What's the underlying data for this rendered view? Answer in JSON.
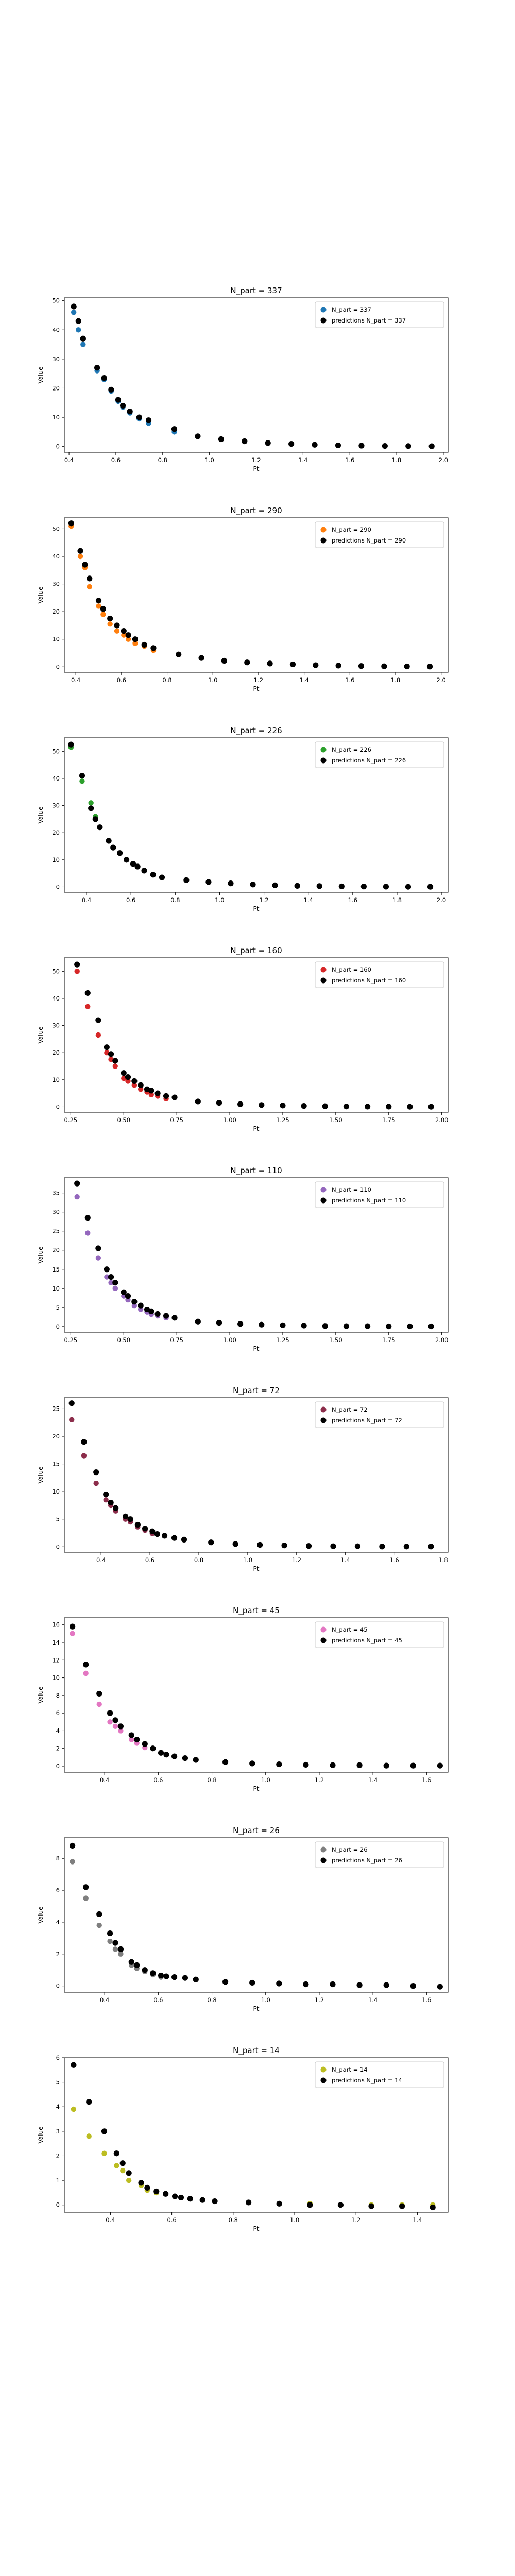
{
  "chart_data": [
    {
      "type": "scatter",
      "title": "N_part = 337",
      "xlabel": "Pt",
      "ylabel": "Value",
      "xlim": [
        0.38,
        2.02
      ],
      "ylim": [
        -2,
        51
      ],
      "xticks": [
        "0.4",
        "0.6",
        "0.8",
        "1.0",
        "1.2",
        "1.4",
        "1.6",
        "1.8",
        "2.0"
      ],
      "yticks": [
        "0",
        "10",
        "20",
        "30",
        "40",
        "50"
      ],
      "legend": "top-right",
      "series": [
        {
          "name": "N_part = 337",
          "color": "#1f77b4",
          "x": [
            0.42,
            0.44,
            0.46,
            0.52,
            0.55,
            0.58,
            0.61,
            0.63,
            0.66,
            0.7,
            0.74,
            0.85
          ],
          "y": [
            46.0,
            40.0,
            35.0,
            26.0,
            23.0,
            19.0,
            15.5,
            13.5,
            11.5,
            9.5,
            8.0,
            5.0
          ]
        },
        {
          "name": "predictions N_part = 337",
          "color": "#000000",
          "x": [
            0.42,
            0.44,
            0.46,
            0.52,
            0.55,
            0.58,
            0.61,
            0.63,
            0.66,
            0.7,
            0.74,
            0.85,
            0.95,
            1.05,
            1.15,
            1.25,
            1.35,
            1.45,
            1.55,
            1.65,
            1.75,
            1.85,
            1.95
          ],
          "y": [
            48.0,
            43.0,
            37.0,
            27.0,
            23.5,
            19.5,
            16.0,
            14.0,
            12.0,
            10.0,
            9.0,
            6.0,
            3.5,
            2.5,
            1.8,
            1.2,
            0.9,
            0.6,
            0.4,
            0.3,
            0.2,
            0.15,
            0.1
          ]
        }
      ]
    },
    {
      "type": "scatter",
      "title": "N_part = 290",
      "xlabel": "Pt",
      "ylabel": "Value",
      "xlim": [
        0.35,
        2.03
      ],
      "ylim": [
        -2,
        54
      ],
      "xticks": [
        "0.4",
        "0.6",
        "0.8",
        "1.0",
        "1.2",
        "1.4",
        "1.6",
        "1.8",
        "2.0"
      ],
      "yticks": [
        "0",
        "10",
        "20",
        "30",
        "40",
        "50"
      ],
      "legend": "top-right",
      "series": [
        {
          "name": "N_part = 290",
          "color": "#ff7f0e",
          "x": [
            0.38,
            0.42,
            0.44,
            0.46,
            0.5,
            0.52,
            0.55,
            0.58,
            0.61,
            0.63,
            0.66,
            0.7,
            0.74
          ],
          "y": [
            51.0,
            40.0,
            36.0,
            29.0,
            22.0,
            19.0,
            15.5,
            13.0,
            11.5,
            10.0,
            8.5,
            7.5,
            6.0
          ]
        },
        {
          "name": "predictions N_part = 290",
          "color": "#000000",
          "x": [
            0.38,
            0.42,
            0.44,
            0.46,
            0.5,
            0.52,
            0.55,
            0.58,
            0.61,
            0.63,
            0.66,
            0.7,
            0.74,
            0.85,
            0.95,
            1.05,
            1.15,
            1.25,
            1.35,
            1.45,
            1.55,
            1.65,
            1.75,
            1.85,
            1.95
          ],
          "y": [
            52.0,
            42.0,
            37.0,
            32.0,
            24.0,
            21.0,
            17.5,
            15.0,
            13.0,
            11.5,
            10.0,
            8.0,
            6.8,
            4.5,
            3.2,
            2.2,
            1.6,
            1.2,
            0.9,
            0.6,
            0.45,
            0.3,
            0.2,
            0.15,
            0.1
          ]
        }
      ]
    },
    {
      "type": "scatter",
      "title": "N_part = 226",
      "xlabel": "Pt",
      "ylabel": "Value",
      "xlim": [
        0.3,
        2.03
      ],
      "ylim": [
        -2,
        55
      ],
      "xticks": [
        "0.4",
        "0.6",
        "0.8",
        "1.0",
        "1.2",
        "1.4",
        "1.6",
        "1.8",
        "2.0"
      ],
      "yticks": [
        "0",
        "10",
        "20",
        "30",
        "40",
        "50"
      ],
      "legend": "top-right",
      "series": [
        {
          "name": "N_part = 226",
          "color": "#2ca02c",
          "x": [
            0.33,
            0.38,
            0.42,
            0.44,
            0.46
          ],
          "y": [
            51.5,
            39.0,
            31.0,
            26.0,
            22.0
          ]
        },
        {
          "name": "predictions N_part = 226",
          "color": "#000000",
          "x": [
            0.33,
            0.38,
            0.42,
            0.44,
            0.46,
            0.5,
            0.52,
            0.55,
            0.58,
            0.61,
            0.63,
            0.66,
            0.7,
            0.74,
            0.85,
            0.95,
            1.05,
            1.15,
            1.25,
            1.35,
            1.45,
            1.55,
            1.65,
            1.75,
            1.85,
            1.95
          ],
          "y": [
            52.5,
            41.0,
            29.0,
            25.0,
            22.0,
            17.0,
            14.5,
            12.5,
            10.0,
            8.5,
            7.5,
            6.0,
            4.5,
            3.5,
            2.5,
            1.8,
            1.3,
            0.9,
            0.6,
            0.4,
            0.3,
            0.2,
            0.15,
            0.1,
            0.05,
            0.05
          ]
        }
      ]
    },
    {
      "type": "scatter",
      "title": "N_part = 160",
      "xlabel": "Pt",
      "ylabel": "Value",
      "xlim": [
        0.22,
        2.03
      ],
      "ylim": [
        -2,
        55
      ],
      "xticks": [
        "0.25",
        "0.50",
        "0.75",
        "1.00",
        "1.25",
        "1.50",
        "1.75",
        "2.00"
      ],
      "yticks": [
        "0",
        "10",
        "20",
        "30",
        "40",
        "50"
      ],
      "legend": "top-right",
      "series": [
        {
          "name": "N_part = 160",
          "color": "#d62728",
          "x": [
            0.28,
            0.33,
            0.38,
            0.42,
            0.44,
            0.46,
            0.5,
            0.52,
            0.55,
            0.58,
            0.61,
            0.63,
            0.66,
            0.7
          ],
          "y": [
            50.0,
            37.0,
            26.5,
            20.0,
            17.5,
            15.0,
            10.5,
            9.5,
            8.0,
            6.5,
            5.5,
            4.5,
            4.0,
            3.0
          ]
        },
        {
          "name": "predictions N_part = 160",
          "color": "#000000",
          "x": [
            0.28,
            0.33,
            0.38,
            0.42,
            0.44,
            0.46,
            0.5,
            0.52,
            0.55,
            0.58,
            0.61,
            0.63,
            0.66,
            0.7,
            0.74,
            0.85,
            0.95,
            1.05,
            1.15,
            1.25,
            1.35,
            1.45,
            1.55,
            1.65,
            1.75,
            1.85,
            1.95
          ],
          "y": [
            52.5,
            42.0,
            32.0,
            22.0,
            19.5,
            17.0,
            12.5,
            11.0,
            9.5,
            8.0,
            6.5,
            6.0,
            5.0,
            4.0,
            3.5,
            2.0,
            1.5,
            1.0,
            0.7,
            0.5,
            0.35,
            0.25,
            0.15,
            0.1,
            0.1,
            0.05,
            0.05
          ]
        }
      ]
    },
    {
      "type": "scatter",
      "title": "N_part = 110",
      "xlabel": "Pt",
      "ylabel": "Value",
      "xlim": [
        0.22,
        2.03
      ],
      "ylim": [
        -1.5,
        39
      ],
      "xticks": [
        "0.25",
        "0.50",
        "0.75",
        "1.00",
        "1.25",
        "1.50",
        "1.75",
        "2.00"
      ],
      "yticks": [
        "0",
        "5",
        "10",
        "15",
        "20",
        "25",
        "30",
        "35"
      ],
      "legend": "top-right",
      "series": [
        {
          "name": "N_part = 110",
          "color": "#9467bd",
          "x": [
            0.28,
            0.33,
            0.38,
            0.42,
            0.44,
            0.46,
            0.5,
            0.52,
            0.55,
            0.58,
            0.61,
            0.63,
            0.66,
            0.7
          ],
          "y": [
            34.0,
            24.5,
            18.0,
            13.0,
            11.5,
            10.0,
            8.0,
            7.0,
            5.5,
            4.5,
            3.8,
            3.2,
            2.8,
            2.3
          ]
        },
        {
          "name": "predictions N_part = 110",
          "color": "#000000",
          "x": [
            0.28,
            0.33,
            0.38,
            0.42,
            0.44,
            0.46,
            0.5,
            0.52,
            0.55,
            0.58,
            0.61,
            0.63,
            0.66,
            0.7,
            0.74,
            0.85,
            0.95,
            1.05,
            1.15,
            1.25,
            1.35,
            1.45,
            1.55,
            1.65,
            1.75,
            1.85,
            1.95
          ],
          "y": [
            37.5,
            28.5,
            20.5,
            15.0,
            13.0,
            11.5,
            9.0,
            8.0,
            6.5,
            5.5,
            4.5,
            4.0,
            3.3,
            2.8,
            2.3,
            1.3,
            1.0,
            0.7,
            0.5,
            0.35,
            0.25,
            0.15,
            0.1,
            0.1,
            0.05,
            0.05,
            0.05
          ]
        }
      ]
    },
    {
      "type": "scatter",
      "title": "N_part = 72",
      "xlabel": "Pt",
      "ylabel": "Value",
      "xlim": [
        0.25,
        1.82
      ],
      "ylim": [
        -1,
        27
      ],
      "xticks": [
        "0.4",
        "0.6",
        "0.8",
        "1.0",
        "1.2",
        "1.4",
        "1.6",
        "1.8"
      ],
      "yticks": [
        "0",
        "5",
        "10",
        "15",
        "20",
        "25"
      ],
      "legend": "top-right",
      "series": [
        {
          "name": "N_part = 72",
          "color": "#8c2d4b",
          "x": [
            0.28,
            0.33,
            0.38,
            0.42,
            0.44,
            0.46,
            0.5,
            0.52,
            0.55,
            0.58,
            0.61
          ],
          "y": [
            23.0,
            16.5,
            11.5,
            8.5,
            7.5,
            6.5,
            5.0,
            4.5,
            3.6,
            3.0,
            2.4
          ]
        },
        {
          "name": "predictions N_part = 72",
          "color": "#000000",
          "x": [
            0.28,
            0.33,
            0.38,
            0.42,
            0.44,
            0.46,
            0.5,
            0.52,
            0.55,
            0.58,
            0.61,
            0.63,
            0.66,
            0.7,
            0.74,
            0.85,
            0.95,
            1.05,
            1.15,
            1.25,
            1.35,
            1.45,
            1.55,
            1.65,
            1.75
          ],
          "y": [
            26.0,
            19.0,
            13.5,
            9.5,
            8.0,
            7.0,
            5.5,
            5.0,
            4.0,
            3.3,
            2.8,
            2.3,
            2.0,
            1.6,
            1.3,
            0.8,
            0.5,
            0.35,
            0.25,
            0.15,
            0.1,
            0.1,
            0.05,
            0.05,
            0.05
          ]
        }
      ]
    },
    {
      "type": "scatter",
      "title": "N_part = 45",
      "xlabel": "Pt",
      "ylabel": "Value",
      "xlim": [
        0.25,
        1.68
      ],
      "ylim": [
        -0.7,
        16.8
      ],
      "xticks": [
        "0.4",
        "0.6",
        "0.8",
        "1.0",
        "1.2",
        "1.4",
        "1.6"
      ],
      "yticks": [
        "0",
        "2",
        "4",
        "6",
        "8",
        "10",
        "12",
        "14",
        "16"
      ],
      "legend": "top-right",
      "series": [
        {
          "name": "N_part = 45",
          "color": "#e377c2",
          "x": [
            0.28,
            0.33,
            0.38,
            0.42,
            0.44,
            0.46,
            0.5,
            0.52,
            0.55
          ],
          "y": [
            15.0,
            10.5,
            7.0,
            5.0,
            4.5,
            4.0,
            3.0,
            2.6,
            2.1
          ]
        },
        {
          "name": "predictions N_part = 45",
          "color": "#000000",
          "x": [
            0.28,
            0.33,
            0.38,
            0.42,
            0.44,
            0.46,
            0.5,
            0.52,
            0.55,
            0.58,
            0.61,
            0.63,
            0.66,
            0.7,
            0.74,
            0.85,
            0.95,
            1.05,
            1.15,
            1.25,
            1.35,
            1.45,
            1.55,
            1.65
          ],
          "y": [
            15.8,
            11.5,
            8.2,
            6.0,
            5.2,
            4.5,
            3.5,
            3.0,
            2.5,
            2.0,
            1.5,
            1.3,
            1.1,
            0.9,
            0.7,
            0.45,
            0.3,
            0.2,
            0.15,
            0.1,
            0.1,
            0.05,
            0.05,
            0.05
          ]
        }
      ]
    },
    {
      "type": "scatter",
      "title": "N_part = 26",
      "xlabel": "Pt",
      "ylabel": "Value",
      "xlim": [
        0.25,
        1.68
      ],
      "ylim": [
        -0.4,
        9.3
      ],
      "xticks": [
        "0.4",
        "0.6",
        "0.8",
        "1.0",
        "1.2",
        "1.4",
        "1.6"
      ],
      "yticks": [
        "0",
        "2",
        "4",
        "6",
        "8"
      ],
      "legend": "top-right",
      "series": [
        {
          "name": "N_part = 26",
          "color": "#7f7f7f",
          "x": [
            0.28,
            0.33,
            0.38,
            0.42,
            0.44,
            0.46,
            0.5,
            0.52,
            0.55,
            0.58,
            0.61
          ],
          "y": [
            7.8,
            5.5,
            3.8,
            2.8,
            2.3,
            2.0,
            1.3,
            1.1,
            0.9,
            0.7,
            0.55
          ]
        },
        {
          "name": "predictions N_part = 26",
          "color": "#000000",
          "x": [
            0.28,
            0.33,
            0.38,
            0.42,
            0.44,
            0.46,
            0.5,
            0.52,
            0.55,
            0.58,
            0.61,
            0.63,
            0.66,
            0.7,
            0.74,
            0.85,
            0.95,
            1.05,
            1.15,
            1.25,
            1.35,
            1.45,
            1.55,
            1.65
          ],
          "y": [
            8.8,
            6.2,
            4.5,
            3.3,
            2.7,
            2.3,
            1.5,
            1.3,
            1.0,
            0.8,
            0.65,
            0.6,
            0.55,
            0.5,
            0.4,
            0.25,
            0.2,
            0.15,
            0.1,
            0.1,
            0.05,
            0.05,
            0.0,
            -0.05
          ]
        }
      ]
    },
    {
      "type": "scatter",
      "title": "N_part = 14",
      "xlabel": "Pt",
      "ylabel": "Value",
      "xlim": [
        0.25,
        1.5
      ],
      "ylim": [
        -0.3,
        6.0
      ],
      "xticks": [
        "0.4",
        "0.6",
        "0.8",
        "1.0",
        "1.2",
        "1.4"
      ],
      "yticks": [
        "0",
        "1",
        "2",
        "3",
        "4",
        "5",
        "6"
      ],
      "legend": "top-right",
      "series": [
        {
          "name": "N_part = 14",
          "color": "#bcbd22",
          "x": [
            0.28,
            0.33,
            0.38,
            0.42,
            0.44,
            0.46,
            0.5,
            0.52,
            0.55,
            0.58,
            0.61,
            0.63,
            0.66,
            0.7,
            0.74,
            0.85,
            0.95,
            1.05,
            1.15,
            1.25,
            1.35,
            1.45
          ],
          "y": [
            3.9,
            2.8,
            2.1,
            1.6,
            1.4,
            1.0,
            0.8,
            0.6,
            0.5,
            0.45,
            0.35,
            0.3,
            0.25,
            0.2,
            0.15,
            0.1,
            0.05,
            0.05,
            0.0,
            0.0,
            0.0,
            0.0
          ]
        },
        {
          "name": "predictions N_part = 14",
          "color": "#000000",
          "x": [
            0.28,
            0.33,
            0.38,
            0.42,
            0.44,
            0.46,
            0.5,
            0.52,
            0.55,
            0.58,
            0.61,
            0.63,
            0.66,
            0.7,
            0.74,
            0.85,
            0.95,
            1.05,
            1.15,
            1.25,
            1.35,
            1.45
          ],
          "y": [
            5.7,
            4.2,
            3.0,
            2.1,
            1.7,
            1.3,
            0.9,
            0.7,
            0.55,
            0.45,
            0.35,
            0.3,
            0.25,
            0.2,
            0.15,
            0.1,
            0.05,
            0.0,
            0.0,
            -0.05,
            -0.05,
            -0.1
          ]
        }
      ]
    }
  ]
}
